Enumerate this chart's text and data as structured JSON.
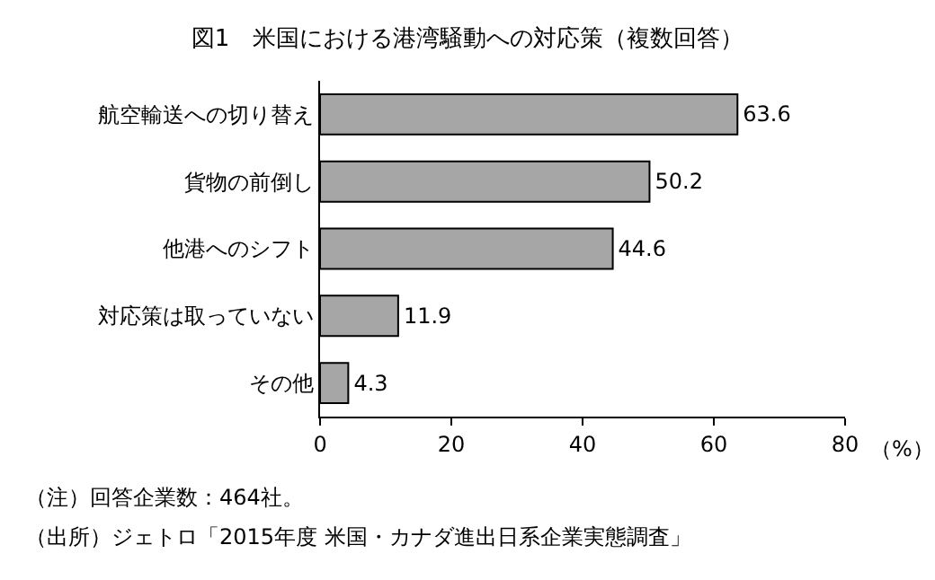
{
  "chart_data": {
    "type": "bar",
    "orientation": "horizontal",
    "title": "図1　米国における港湾騒動への対応策（複数回答）",
    "categories": [
      "航空輸送への切り替え",
      "貨物の前倒し",
      "他港へのシフト",
      "対応策は取っていない",
      "その他"
    ],
    "values": [
      63.6,
      50.2,
      44.6,
      11.9,
      4.3
    ],
    "color": "#a6a6a6",
    "xlabel": "（%）",
    "xlim": [
      0,
      80
    ],
    "xticks": [
      0,
      20,
      40,
      60,
      80
    ],
    "data_labels": true,
    "annotations": [
      "（注）回答企業数：464社。",
      "（出所）ジェトロ「2015年度 米国・カナダ進出日系企業実態調査」"
    ]
  }
}
